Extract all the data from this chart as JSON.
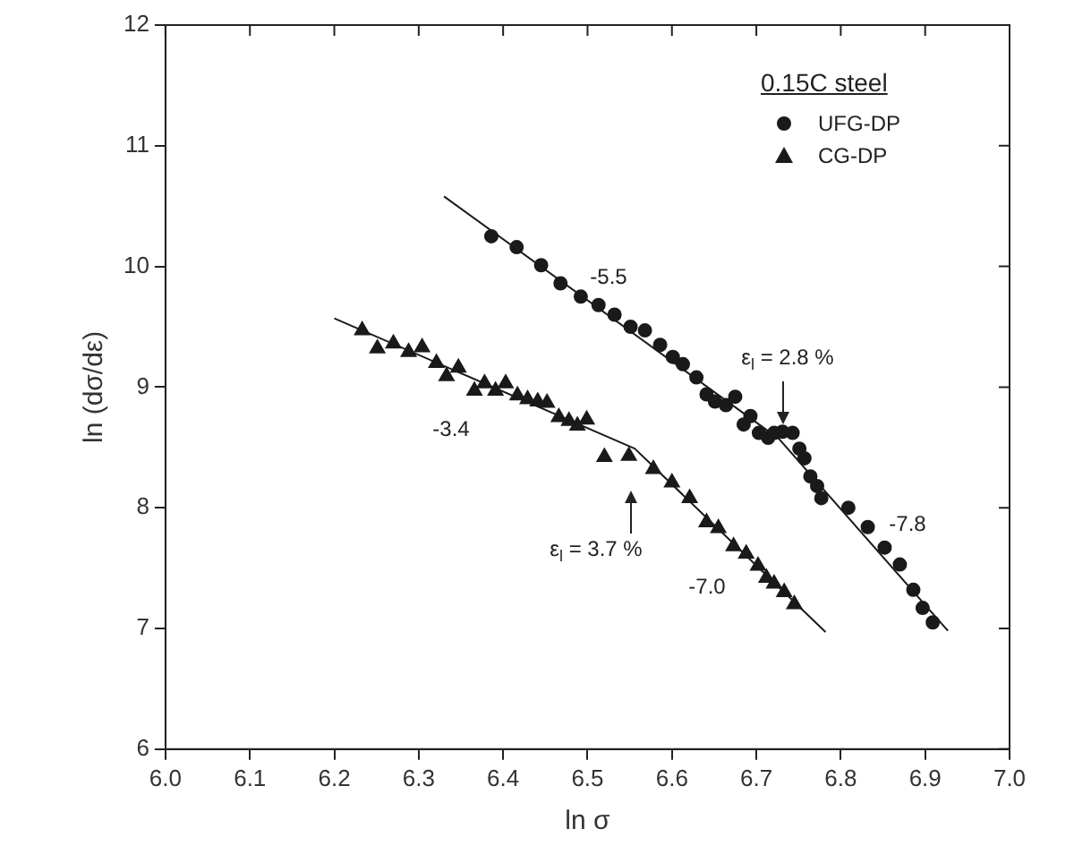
{
  "chart_data": {
    "type": "scatter",
    "xlabel": "ln σ",
    "ylabel": "ln (dσ/dε)",
    "legend_title": "0.15C steel",
    "legend": "top right",
    "grid": false,
    "xlim": [
      6,
      7
    ],
    "ylim": [
      6,
      12
    ],
    "xticks": [
      {
        "value": 6,
        "label": "6.0"
      },
      6.1,
      6.2,
      6.3,
      6.4,
      6.5,
      6.6,
      6.7,
      6.8,
      6.9,
      {
        "value": 7,
        "label": "7.0"
      }
    ],
    "yticks": [
      6,
      7,
      8,
      9,
      10,
      11,
      12
    ],
    "series": [
      {
        "name": "UFG-DP",
        "color": "#1a1a1a",
        "marker": "circle",
        "x": [
          6.386,
          6.416,
          6.445,
          6.468,
          6.492,
          6.513,
          6.532,
          6.551,
          6.568,
          6.586,
          6.601,
          6.613,
          6.629,
          6.641,
          6.651,
          6.664,
          6.675,
          6.685,
          6.693,
          6.703,
          6.714,
          6.721,
          6.731,
          6.743,
          6.751,
          6.757,
          6.764,
          6.772,
          6.777,
          6.809,
          6.832,
          6.852,
          6.87,
          6.886,
          6.897,
          6.909
        ],
        "values": [
          10.25,
          10.16,
          10.01,
          9.86,
          9.75,
          9.68,
          9.6,
          9.5,
          9.47,
          9.35,
          9.25,
          9.19,
          9.08,
          8.94,
          8.88,
          8.85,
          8.92,
          8.69,
          8.76,
          8.62,
          8.58,
          8.62,
          8.63,
          8.62,
          8.49,
          8.41,
          8.26,
          8.18,
          8.08,
          8.0,
          7.84,
          7.67,
          7.53,
          7.32,
          7.17,
          7.05
        ]
      },
      {
        "name": "CG-DP",
        "color": "#1a1a1a",
        "marker": "triangle",
        "x": [
          6.233,
          6.251,
          6.27,
          6.288,
          6.304,
          6.321,
          6.333,
          6.347,
          6.366,
          6.378,
          6.391,
          6.403,
          6.417,
          6.429,
          6.441,
          6.452,
          6.466,
          6.478,
          6.488,
          6.499,
          6.52,
          6.549,
          6.578,
          6.6,
          6.621,
          6.641,
          6.655,
          6.673,
          6.688,
          6.702,
          6.712,
          6.721,
          6.733,
          6.745
        ],
        "values": [
          9.47,
          9.32,
          9.36,
          9.29,
          9.33,
          9.2,
          9.09,
          9.16,
          8.97,
          9.03,
          8.97,
          9.03,
          8.93,
          8.9,
          8.88,
          8.87,
          8.75,
          8.72,
          8.68,
          8.73,
          8.42,
          8.43,
          8.32,
          8.21,
          8.08,
          7.88,
          7.83,
          7.68,
          7.62,
          7.52,
          7.42,
          7.37,
          7.3,
          7.2
        ]
      },
      {
        "type": "line",
        "color": "#1a1a1a",
        "marker": "none",
        "x": [
          6.33,
          6.727,
          6.927
        ],
        "values": [
          10.58,
          8.57,
          6.98
        ]
      },
      {
        "type": "line",
        "color": "#1a1a1a",
        "marker": "none",
        "x": [
          6.2,
          6.556,
          6.782
        ],
        "values": [
          9.57,
          8.49,
          6.97
        ]
      }
    ],
    "annotations": [
      "-5.5",
      "ε$_{l}$ = 2.8 %",
      "-7.8",
      "-3.4",
      "ε$_{l}$ = 3.7 %",
      "-7.0"
    ]
  }
}
